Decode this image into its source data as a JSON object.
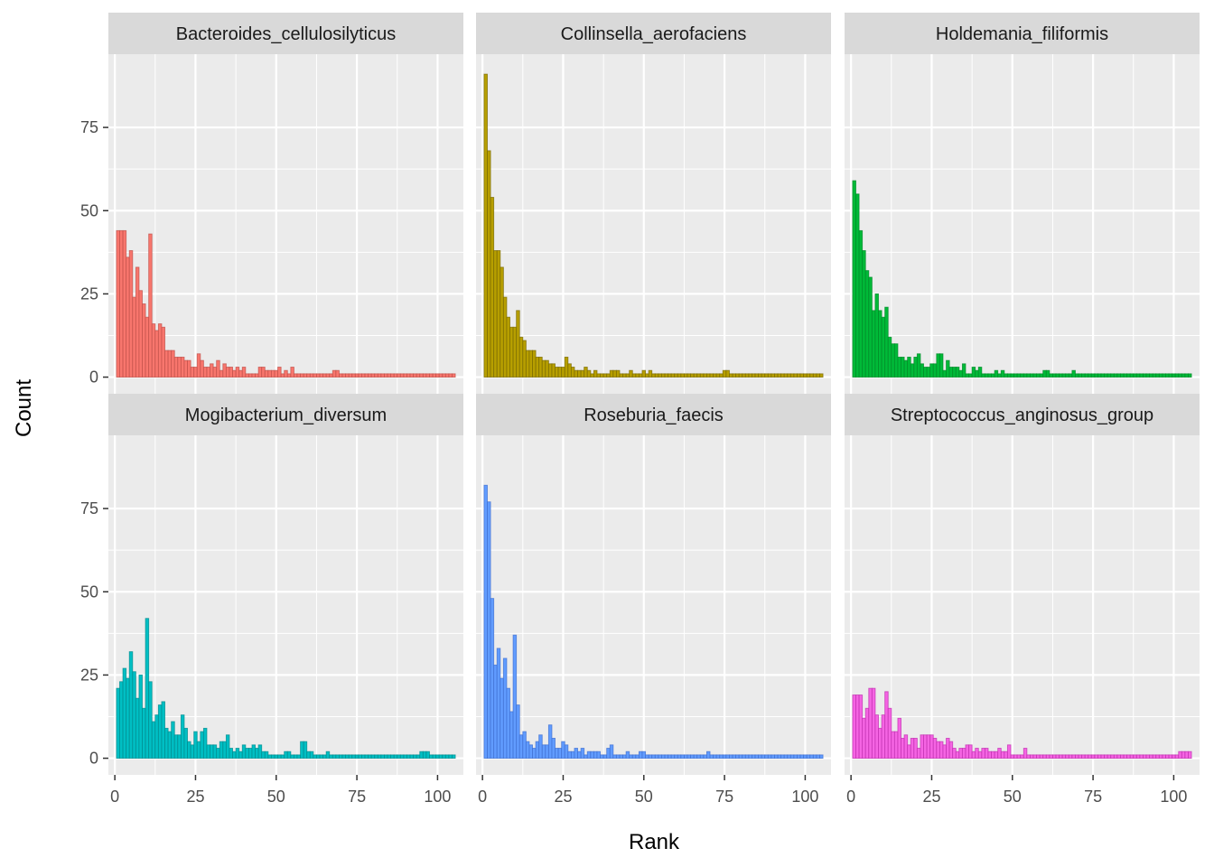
{
  "chart_data": {
    "type": "bar",
    "xlabel": "Rank",
    "ylabel": "Count",
    "xlim": [
      -2,
      108
    ],
    "ylim": [
      -5,
      97
    ],
    "x_ticks": [
      0,
      25,
      50,
      75,
      100
    ],
    "y_ticks": [
      0,
      25,
      50,
      75
    ],
    "grid": true,
    "bar_outline_opacity": 0.75,
    "panels": [
      {
        "name": "Bacteroides_cellulosilyticus",
        "color": "#F8766D",
        "outline": "#C0504A",
        "values": [
          44,
          44,
          44,
          36,
          38,
          24,
          33,
          26,
          22,
          18,
          43,
          16,
          14,
          16,
          15,
          8,
          8,
          8,
          6,
          6,
          6,
          5,
          5,
          3,
          3,
          7,
          5,
          3,
          3,
          4,
          3,
          5,
          2,
          4,
          3,
          3,
          2,
          3,
          2,
          3,
          1,
          1,
          1,
          1,
          3,
          3,
          2,
          2,
          2,
          2,
          3,
          1,
          2,
          1,
          3,
          1,
          1,
          1,
          1,
          1,
          1,
          1,
          1,
          1,
          1,
          1,
          1,
          2,
          2,
          1,
          1,
          1,
          1,
          1,
          1,
          1,
          1,
          1,
          1,
          1,
          1,
          1,
          1,
          1,
          1,
          1,
          1,
          1,
          1,
          1,
          1,
          1,
          1,
          1,
          1,
          1,
          1,
          1,
          1,
          1,
          1,
          1,
          1,
          1,
          1
        ]
      },
      {
        "name": "Collinsella_aerofaciens",
        "color": "#B79F00",
        "outline": "#7A6A00",
        "values": [
          91,
          68,
          54,
          38,
          38,
          33,
          24,
          18,
          15,
          15,
          20,
          12,
          11,
          8,
          8,
          8,
          6,
          6,
          5,
          5,
          4,
          4,
          3,
          3,
          3,
          6,
          4,
          3,
          2,
          2,
          2,
          3,
          2,
          1,
          2,
          1,
          1,
          1,
          1,
          2,
          2,
          2,
          1,
          1,
          1,
          2,
          1,
          1,
          1,
          2,
          1,
          2,
          1,
          1,
          1,
          1,
          1,
          1,
          1,
          1,
          1,
          1,
          1,
          1,
          1,
          1,
          1,
          1,
          1,
          1,
          1,
          1,
          1,
          1,
          2,
          2,
          1,
          1,
          1,
          1,
          1,
          1,
          1,
          1,
          1,
          1,
          1,
          1,
          1,
          1,
          1,
          1,
          1,
          1,
          1,
          1,
          1,
          1,
          1,
          1,
          1,
          1,
          1,
          1,
          1
        ]
      },
      {
        "name": "Holdemania_filiformis",
        "color": "#00BA38",
        "outline": "#008A28",
        "values": [
          59,
          55,
          44,
          38,
          32,
          30,
          20,
          25,
          20,
          18,
          21,
          12,
          10,
          10,
          6,
          6,
          5,
          6,
          4,
          6,
          7,
          4,
          3,
          3,
          4,
          4,
          7,
          7,
          2,
          5,
          3,
          3,
          3,
          2,
          4,
          1,
          1,
          3,
          2,
          3,
          1,
          1,
          1,
          1,
          2,
          1,
          2,
          1,
          1,
          1,
          1,
          1,
          1,
          1,
          1,
          1,
          1,
          1,
          1,
          2,
          2,
          1,
          1,
          1,
          1,
          1,
          1,
          1,
          2,
          1,
          1,
          1,
          1,
          1,
          1,
          1,
          1,
          1,
          1,
          1,
          1,
          1,
          1,
          1,
          1,
          1,
          1,
          1,
          1,
          1,
          1,
          1,
          1,
          1,
          1,
          1,
          1,
          1,
          1,
          1,
          1,
          1,
          1,
          1,
          1
        ]
      },
      {
        "name": "Mogibacterium_diversum",
        "color": "#00BFC4",
        "outline": "#008B8E",
        "values": [
          21,
          23,
          27,
          24,
          32,
          26,
          18,
          25,
          15,
          42,
          23,
          11,
          13,
          16,
          17,
          9,
          8,
          11,
          7,
          7,
          13,
          9,
          5,
          4,
          8,
          5,
          8,
          9,
          4,
          4,
          4,
          3,
          5,
          5,
          7,
          3,
          2,
          3,
          2,
          4,
          3,
          3,
          4,
          3,
          4,
          2,
          2,
          1,
          1,
          1,
          1,
          1,
          2,
          2,
          1,
          1,
          1,
          5,
          5,
          2,
          2,
          1,
          1,
          1,
          1,
          2,
          1,
          1,
          1,
          1,
          1,
          1,
          1,
          1,
          1,
          1,
          1,
          1,
          1,
          1,
          1,
          1,
          1,
          1,
          1,
          1,
          1,
          1,
          1,
          1,
          1,
          1,
          1,
          1,
          2,
          2,
          2,
          1,
          1,
          1,
          1,
          1,
          1,
          1,
          1
        ]
      },
      {
        "name": "Roseburia_faecis",
        "color": "#619CFF",
        "outline": "#3F6FD0",
        "values": [
          82,
          77,
          48,
          28,
          33,
          24,
          30,
          21,
          14,
          37,
          16,
          7,
          8,
          5,
          4,
          3,
          5,
          7,
          4,
          4,
          10,
          6,
          3,
          3,
          5,
          4,
          2,
          2,
          3,
          2,
          3,
          1,
          2,
          2,
          2,
          2,
          1,
          1,
          3,
          4,
          1,
          1,
          1,
          1,
          2,
          1,
          1,
          1,
          2,
          2,
          1,
          1,
          1,
          1,
          1,
          1,
          1,
          1,
          1,
          1,
          1,
          1,
          1,
          1,
          1,
          1,
          1,
          1,
          1,
          2,
          1,
          1,
          1,
          1,
          1,
          1,
          1,
          1,
          1,
          1,
          1,
          1,
          1,
          1,
          1,
          1,
          1,
          1,
          1,
          1,
          1,
          1,
          1,
          1,
          1,
          1,
          1,
          1,
          1,
          1,
          1,
          1,
          1,
          1,
          1
        ]
      },
      {
        "name": "Streptococcus_anginosus_group",
        "color": "#F564E3",
        "outline": "#C030B0",
        "values": [
          19,
          19,
          19,
          12,
          15,
          21,
          21,
          13,
          9,
          13,
          20,
          15,
          8,
          8,
          12,
          6,
          7,
          4,
          6,
          6,
          3,
          7,
          7,
          7,
          7,
          6,
          5,
          5,
          4,
          6,
          5,
          3,
          2,
          3,
          3,
          4,
          4,
          2,
          3,
          2,
          3,
          3,
          2,
          2,
          2,
          3,
          2,
          2,
          4,
          1,
          1,
          1,
          1,
          3,
          1,
          1,
          1,
          1,
          1,
          1,
          1,
          1,
          1,
          1,
          1,
          1,
          1,
          1,
          1,
          1,
          1,
          1,
          1,
          1,
          1,
          1,
          1,
          1,
          1,
          1,
          1,
          1,
          1,
          1,
          1,
          1,
          1,
          1,
          1,
          1,
          1,
          1,
          1,
          1,
          1,
          1,
          1,
          1,
          1,
          1,
          1,
          2,
          2,
          2,
          2
        ]
      }
    ]
  }
}
